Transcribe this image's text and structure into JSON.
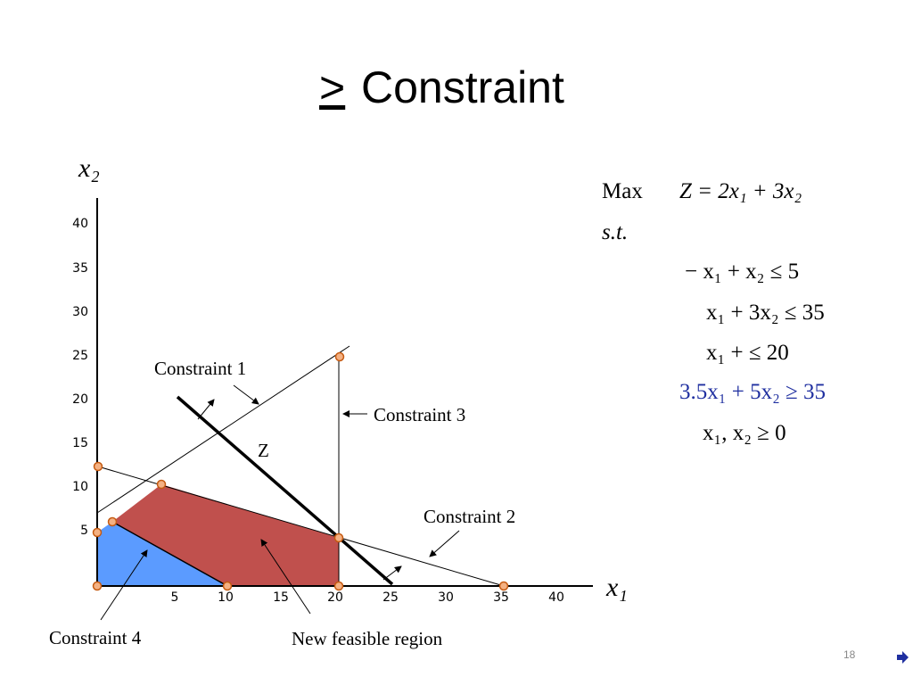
{
  "title": {
    "symbol": ">",
    "text": "Constraint"
  },
  "axes": {
    "y_label": "x₂",
    "x_label": "x₁",
    "x_ticks": [
      "5",
      "10",
      "15",
      "20",
      "25",
      "30",
      "35",
      "40"
    ],
    "y_ticks": [
      "5",
      "10",
      "15",
      "20",
      "25",
      "30",
      "35",
      "40"
    ]
  },
  "labels": {
    "constraint1": "Constraint 1",
    "constraint2": "Constraint 2",
    "constraint3": "Constraint 3",
    "constraint4": "Constraint 4",
    "z": "Z",
    "region": "New feasible region"
  },
  "model": {
    "max": "Max",
    "objective": "Z = 2x₁ + 3x₂",
    "st": "s.t.",
    "constraints": [
      "− x₁ + x₂    ≤ 5",
      "x₁ + 3x₂  ≤ 35",
      "x₁ +        ≤ 20",
      "3.5x₁ + 5x₂ ≥ 35",
      "x₁, x₂ ≥ 0"
    ]
  },
  "page_number": "18"
}
